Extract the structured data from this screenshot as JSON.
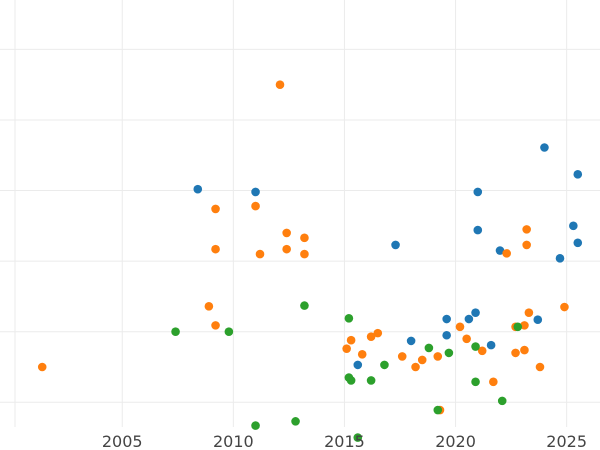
{
  "chart_data": {
    "type": "scatter",
    "title": "",
    "xlabel": "",
    "ylabel": "",
    "xlim": [
      1999.5,
      2026.5
    ],
    "ylim": [
      0.15,
      6.2
    ],
    "x_ticks": [
      2005,
      2010,
      2015,
      2020,
      2025
    ],
    "x_tick_labels": [
      "2005",
      "2010",
      "2015",
      "2020",
      "2025"
    ],
    "y_gridlines": [
      0.5,
      1.5,
      2.5,
      3.5,
      4.5,
      5.5
    ],
    "grid": true,
    "legend": "none",
    "series": [
      {
        "color": "#1f77b4",
        "points": [
          [
            2008.4,
            3.52
          ],
          [
            2011.0,
            3.48
          ],
          [
            2015.6,
            1.03
          ],
          [
            2017.3,
            2.73
          ],
          [
            2018.0,
            1.37
          ],
          [
            2019.6,
            1.45
          ],
          [
            2019.6,
            1.68
          ],
          [
            2020.6,
            1.68
          ],
          [
            2020.9,
            1.77
          ],
          [
            2021.0,
            3.48
          ],
          [
            2021.0,
            2.94
          ],
          [
            2021.6,
            1.31
          ],
          [
            2022.0,
            2.65
          ],
          [
            2023.7,
            1.67
          ],
          [
            2024.0,
            4.11
          ],
          [
            2024.7,
            2.54
          ],
          [
            2025.3,
            3.0
          ],
          [
            2025.5,
            3.73
          ],
          [
            2025.5,
            2.76
          ]
        ]
      },
      {
        "color": "#ff7f0e",
        "points": [
          [
            2001.4,
            1.0
          ],
          [
            2008.9,
            1.86
          ],
          [
            2009.2,
            3.24
          ],
          [
            2009.2,
            2.67
          ],
          [
            2009.2,
            1.59
          ],
          [
            2011.0,
            3.28
          ],
          [
            2011.2,
            2.6
          ],
          [
            2012.1,
            5.0
          ],
          [
            2012.4,
            2.9
          ],
          [
            2012.4,
            2.67
          ],
          [
            2013.2,
            2.83
          ],
          [
            2013.2,
            2.6
          ],
          [
            2015.1,
            1.26
          ],
          [
            2015.3,
            1.38
          ],
          [
            2015.8,
            1.18
          ],
          [
            2016.2,
            1.43
          ],
          [
            2016.5,
            1.48
          ],
          [
            2017.6,
            1.15
          ],
          [
            2018.2,
            1.0
          ],
          [
            2018.5,
            1.1
          ],
          [
            2019.2,
            1.15
          ],
          [
            2019.3,
            0.39
          ],
          [
            2020.2,
            1.57
          ],
          [
            2020.5,
            1.4
          ],
          [
            2021.2,
            1.23
          ],
          [
            2021.7,
            0.79
          ],
          [
            2022.3,
            2.61
          ],
          [
            2022.7,
            1.57
          ],
          [
            2022.7,
            1.2
          ],
          [
            2023.1,
            1.59
          ],
          [
            2023.1,
            1.24
          ],
          [
            2023.2,
            2.95
          ],
          [
            2023.2,
            2.73
          ],
          [
            2023.3,
            1.77
          ],
          [
            2023.8,
            1.0
          ],
          [
            2024.9,
            1.85
          ]
        ]
      },
      {
        "color": "#2ca02c",
        "points": [
          [
            2007.4,
            1.5
          ],
          [
            2009.8,
            1.5
          ],
          [
            2011.0,
            0.17
          ],
          [
            2012.8,
            0.23
          ],
          [
            2013.2,
            1.87
          ],
          [
            2015.2,
            1.69
          ],
          [
            2015.2,
            0.85
          ],
          [
            2015.3,
            0.81
          ],
          [
            2015.6,
            0.0
          ],
          [
            2016.2,
            0.81
          ],
          [
            2016.8,
            1.03
          ],
          [
            2018.8,
            1.27
          ],
          [
            2019.2,
            0.39
          ],
          [
            2019.7,
            1.2
          ],
          [
            2020.9,
            1.29
          ],
          [
            2020.9,
            0.79
          ],
          [
            2022.1,
            0.52
          ],
          [
            2022.8,
            1.57
          ]
        ]
      }
    ]
  }
}
